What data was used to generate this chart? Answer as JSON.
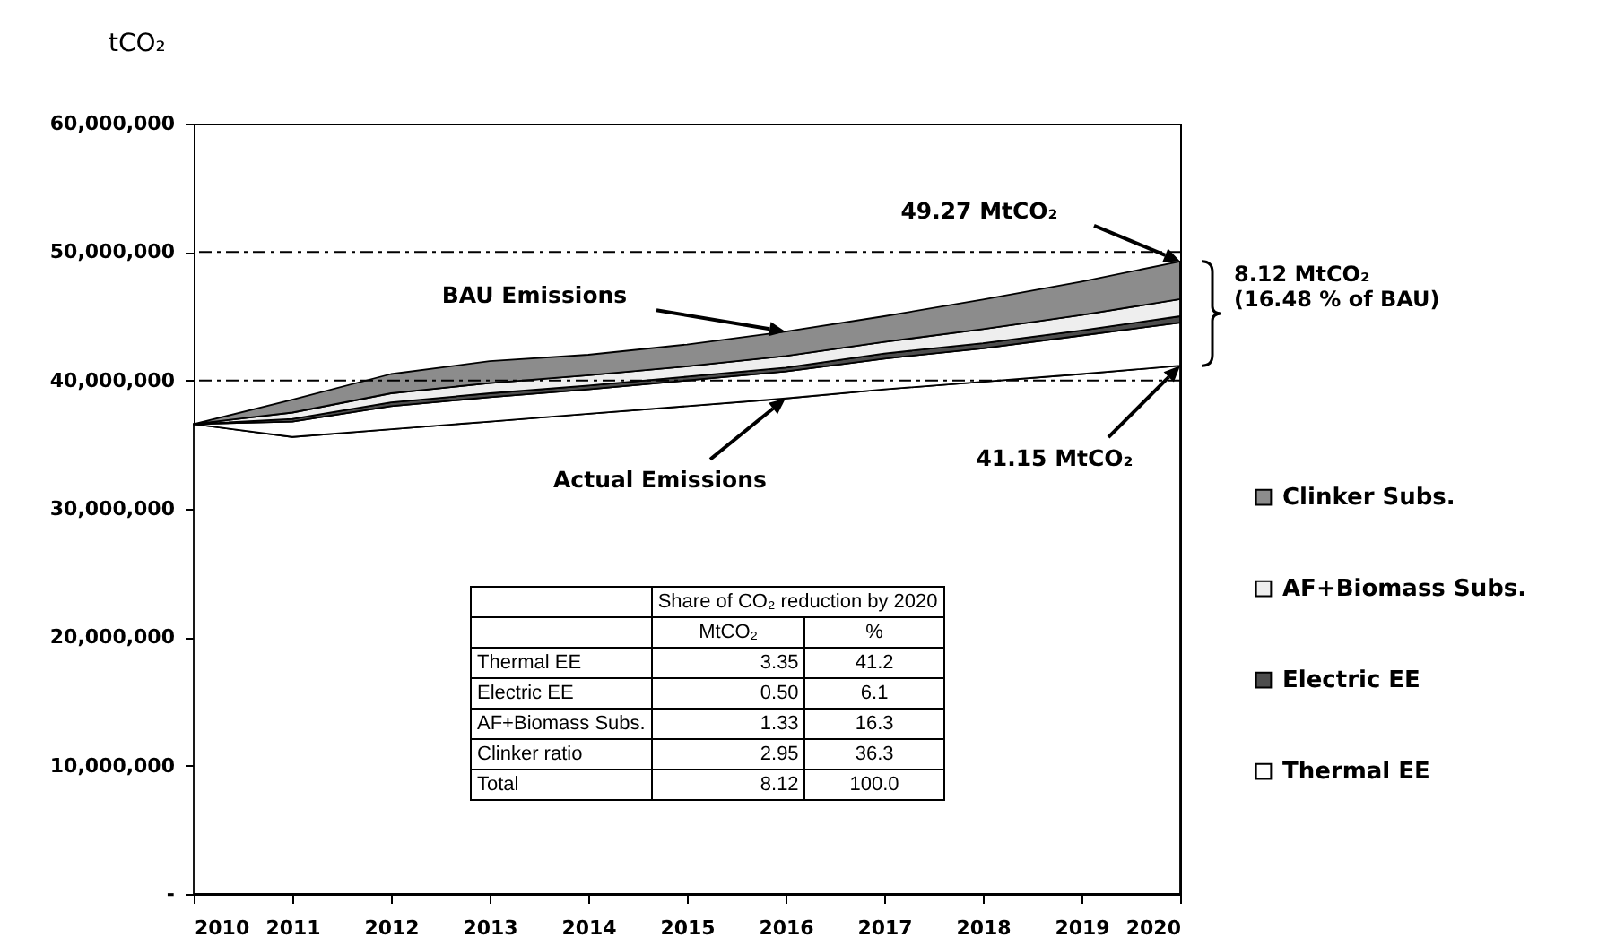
{
  "chart_data": [
    {
      "type": "area",
      "stacked": true,
      "ylabel": "tCO₂",
      "x": [
        2010,
        2011,
        2012,
        2013,
        2014,
        2015,
        2016,
        2017,
        2018,
        2019,
        2020
      ],
      "series": [
        {
          "name": "Actual Emissions",
          "color": "#ffffff",
          "values": [
            36600000,
            35600000,
            36200000,
            36800000,
            37400000,
            38000000,
            38600000,
            39300000,
            39900000,
            40500000,
            41150000
          ]
        },
        {
          "name": "Thermal EE",
          "color": "#ffffff",
          "values": [
            0,
            1200000,
            1800000,
            1900000,
            1900000,
            2000000,
            2100000,
            2400000,
            2600000,
            3000000,
            3350000
          ]
        },
        {
          "name": "Electric  EE",
          "color": "#4d4d4d",
          "values": [
            0,
            200000,
            300000,
            300000,
            300000,
            300000,
            300000,
            400000,
            400000,
            400000,
            500000
          ]
        },
        {
          "name": "AF+Biomass Subs.",
          "color": "#eeeeee",
          "values": [
            0,
            500000,
            700000,
            800000,
            800000,
            800000,
            900000,
            900000,
            1100000,
            1200000,
            1330000
          ]
        },
        {
          "name": "Clinker Subs.",
          "color": "#8c8c8c",
          "values": [
            0,
            1000000,
            1500000,
            1700000,
            1600000,
            1700000,
            1900000,
            2000000,
            2300000,
            2600000,
            2940000
          ]
        }
      ],
      "xlim": [
        2010,
        2020
      ],
      "xticks": [
        2010,
        2011,
        2012,
        2013,
        2014,
        2015,
        2016,
        2017,
        2018,
        2019,
        2020
      ],
      "ylim": [
        0,
        60000000
      ],
      "yticks": [
        {
          "value": 0,
          "label": "-"
        },
        {
          "value": 10000000,
          "label": "10,000,000"
        },
        {
          "value": 20000000,
          "label": "20,000,000"
        },
        {
          "value": 30000000,
          "label": "30,000,000"
        },
        {
          "value": 40000000,
          "label": "40,000,000"
        },
        {
          "value": 50000000,
          "label": "50,000,000"
        },
        {
          "value": 60000000,
          "label": "60,000,000"
        }
      ],
      "ref_lines": [
        {
          "axis": "y",
          "value": 50000000,
          "line_style": "dashed"
        },
        {
          "axis": "y",
          "value": 40000000,
          "line_style": "dashed"
        }
      ],
      "annotations": [
        "BAU Emissions",
        "49.27 MtCO₂",
        "41.15 MtCO₂",
        "8.12 MtCO₂\n(16.48 % of BAU)"
      ],
      "legend": "right",
      "grid": false
    },
    {
      "type": "other",
      "title": "Share of CO₂ reduction by 2020",
      "categories": [
        "Thermal EE",
        "Electric  EE",
        "AF+Biomass Subs.",
        "Clinker ratio",
        "Total"
      ],
      "series": [
        {
          "name": "MtCO₂",
          "values": [
            3.35,
            0.5,
            1.33,
            2.95,
            8.12
          ],
          "value_labels": [
            "3.35",
            "0.50",
            "1.33",
            "2.95",
            "8.12"
          ]
        },
        {
          "name": "%",
          "values": [
            41.2,
            6.1,
            16.3,
            36.3,
            100
          ],
          "value_labels": [
            "41.2",
            "6.1",
            "16.3",
            "36.3",
            "100.0"
          ]
        }
      ]
    }
  ]
}
